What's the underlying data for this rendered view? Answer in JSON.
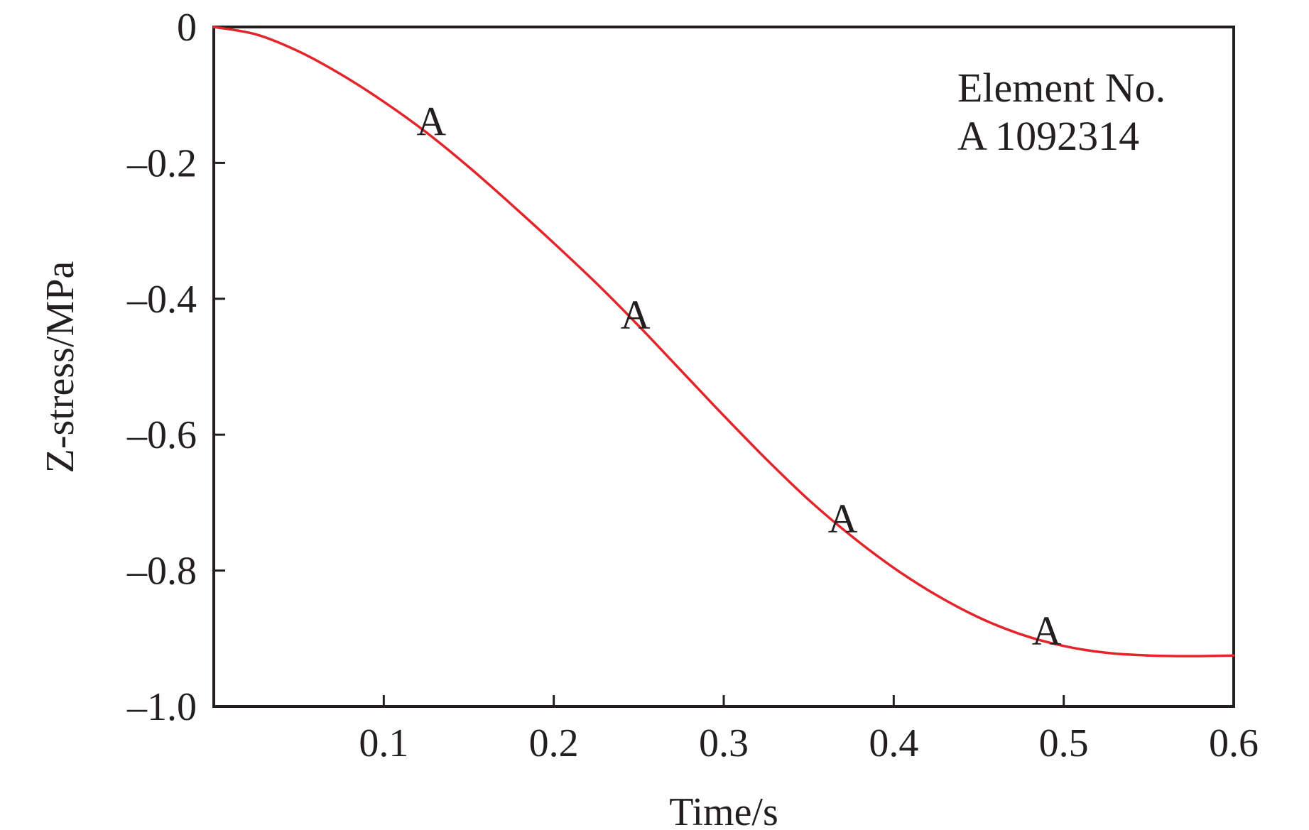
{
  "chart_data": {
    "type": "line",
    "title": "",
    "xlabel": "Time/s",
    "ylabel": "Z-stress/MPa",
    "xlim": [
      0,
      0.6
    ],
    "ylim": [
      -1.0,
      0
    ],
    "x_ticks": [
      0.1,
      0.2,
      0.3,
      0.4,
      0.5,
      0.6
    ],
    "x_tick_labels": [
      "0.1",
      "0.2",
      "0.3",
      "0.4",
      "0.5",
      "0.6"
    ],
    "y_ticks": [
      0,
      -0.2,
      -0.4,
      -0.6,
      -0.8,
      -1.0
    ],
    "y_tick_labels": [
      "0",
      "–0.2",
      "–0.4",
      "–0.6",
      "–0.8",
      "–1.0"
    ],
    "grid": false,
    "legend": {
      "placement": "top-right",
      "title": "Element No.",
      "entries": [
        "A 1092314"
      ]
    },
    "series": [
      {
        "name": "A 1092314",
        "marker_label": "A",
        "color": "#e3242b",
        "x": [
          0,
          0.025,
          0.05,
          0.075,
          0.1,
          0.125,
          0.15,
          0.175,
          0.2,
          0.225,
          0.25,
          0.275,
          0.3,
          0.325,
          0.35,
          0.375,
          0.4,
          0.425,
          0.45,
          0.475,
          0.5,
          0.525,
          0.55,
          0.575,
          0.6
        ],
        "y": [
          0,
          -0.011,
          -0.036,
          -0.07,
          -0.11,
          -0.155,
          -0.206,
          -0.261,
          -0.318,
          -0.377,
          -0.44,
          -0.506,
          -0.572,
          -0.636,
          -0.696,
          -0.749,
          -0.796,
          -0.836,
          -0.869,
          -0.894,
          -0.911,
          -0.921,
          -0.925,
          -0.926,
          -0.925
        ],
        "markers": [
          {
            "x": 0.128,
            "y": -0.155,
            "label": "A"
          },
          {
            "x": 0.248,
            "y": -0.44,
            "label": "A"
          },
          {
            "x": 0.37,
            "y": -0.74,
            "label": "A"
          },
          {
            "x": 0.49,
            "y": -0.905,
            "label": "A"
          }
        ]
      }
    ]
  }
}
